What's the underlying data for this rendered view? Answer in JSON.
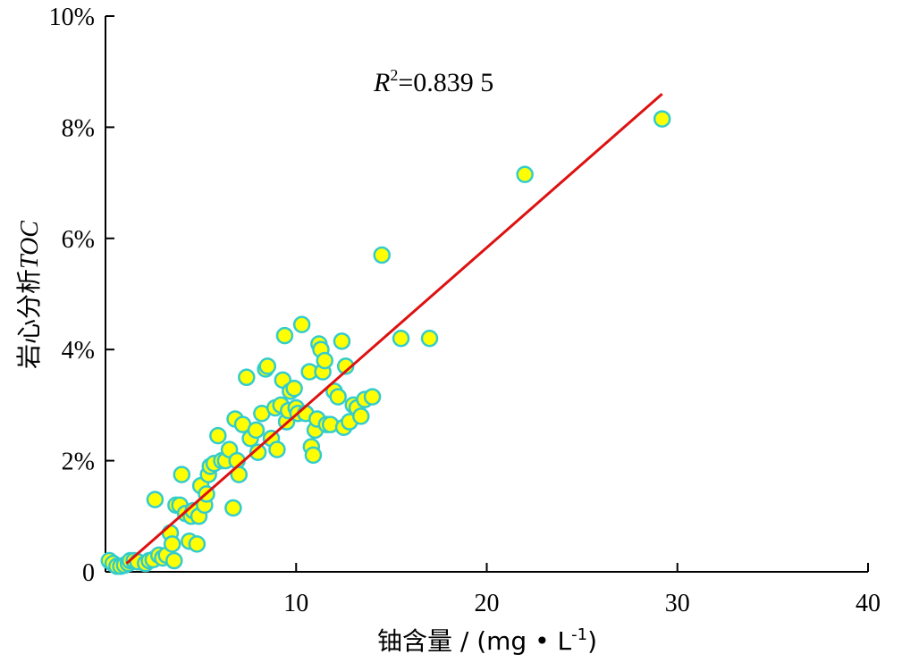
{
  "chart_data": {
    "type": "scatter",
    "title": "",
    "xlabel_main": "铀含量 / (mg • L",
    "xlabel_sup": "-1",
    "xlabel_tail": ")",
    "ylabel_main": "岩心分析",
    "ylabel_italic": "TOC",
    "annotation": {
      "r": "R",
      "sup": "2",
      "value": "=0.839 5"
    },
    "xlim": [
      0,
      40
    ],
    "ylim": [
      0,
      10
    ],
    "x_ticks": [
      10,
      20,
      30,
      40
    ],
    "x_tick_labels": [
      "10",
      "20",
      "30",
      "40"
    ],
    "y_ticks": [
      0,
      2,
      4,
      6,
      8,
      10
    ],
    "y_tick_labels": [
      "0",
      "2%",
      "4%",
      "6%",
      "8%",
      "10%"
    ],
    "colors": {
      "marker_fill": "#ffff00",
      "marker_edge": "#33cccc",
      "trendline": "#dd1111",
      "axis": "#000000"
    },
    "trendline": {
      "x": [
        1.1,
        29.2
      ],
      "y": [
        0.15,
        8.6
      ]
    },
    "x": [
      0.2,
      0.4,
      0.6,
      0.8,
      1.0,
      1.2,
      1.3,
      1.5,
      1.7,
      2.1,
      2.3,
      2.5,
      2.6,
      2.8,
      3.0,
      3.2,
      3.4,
      3.5,
      3.6,
      3.7,
      3.9,
      4.0,
      4.2,
      4.4,
      4.5,
      4.6,
      4.8,
      4.9,
      5.0,
      5.2,
      5.3,
      5.4,
      5.5,
      5.7,
      5.9,
      6.1,
      6.3,
      6.5,
      6.7,
      6.8,
      6.9,
      7.0,
      7.2,
      7.4,
      7.6,
      7.9,
      8.0,
      8.2,
      8.4,
      8.5,
      8.7,
      8.9,
      9.0,
      9.2,
      9.3,
      9.4,
      9.5,
      9.6,
      9.7,
      9.9,
      10.0,
      10.1,
      10.3,
      10.5,
      10.7,
      10.8,
      10.9,
      11.0,
      11.1,
      11.2,
      11.3,
      11.4,
      11.5,
      11.6,
      11.8,
      12.0,
      12.2,
      12.4,
      12.5,
      12.6,
      12.8,
      13.0,
      13.2,
      13.4,
      13.6,
      14.0,
      14.5,
      15.5,
      17.0,
      22.0,
      29.2
    ],
    "y": [
      0.2,
      0.15,
      0.1,
      0.1,
      0.12,
      0.15,
      0.2,
      0.2,
      0.18,
      0.15,
      0.2,
      0.22,
      1.3,
      0.3,
      0.25,
      0.3,
      0.7,
      0.5,
      0.2,
      1.2,
      1.2,
      1.75,
      1.05,
      0.55,
      1.0,
      1.1,
      0.5,
      1.0,
      1.55,
      1.2,
      1.4,
      1.75,
      1.9,
      1.95,
      2.45,
      2.0,
      2.0,
      2.2,
      1.15,
      2.75,
      2.0,
      1.75,
      2.65,
      3.5,
      2.4,
      2.55,
      2.15,
      2.85,
      3.65,
      3.7,
      2.4,
      2.95,
      2.2,
      3.0,
      3.45,
      4.25,
      2.7,
      2.9,
      3.25,
      3.3,
      2.95,
      2.85,
      4.45,
      2.85,
      3.6,
      2.25,
      2.1,
      2.55,
      2.75,
      4.1,
      4.0,
      3.6,
      3.8,
      2.65,
      2.65,
      3.25,
      3.15,
      4.15,
      2.6,
      3.7,
      2.7,
      3.0,
      2.95,
      2.8,
      3.1,
      3.15,
      5.7,
      4.2,
      4.2,
      7.15,
      8.15
    ]
  }
}
